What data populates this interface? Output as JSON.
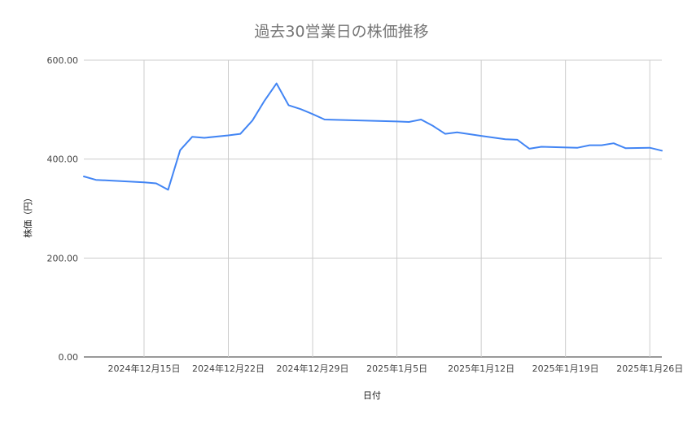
{
  "chart_data": {
    "type": "line",
    "title": "過去30営業日の株価推移",
    "xlabel": "日付",
    "ylabel": "株価（円）",
    "ylim": [
      0,
      600
    ],
    "yticks": [
      {
        "value": 0,
        "label": "0.00"
      },
      {
        "value": 200,
        "label": "200.00"
      },
      {
        "value": 400,
        "label": "400.00"
      },
      {
        "value": 600,
        "label": "600.00"
      }
    ],
    "xlim": [
      "2024-12-10",
      "2025-01-27"
    ],
    "xticks": [
      {
        "date": "2024-12-15",
        "label": "2024年12月15日"
      },
      {
        "date": "2024-12-22",
        "label": "2024年12月22日"
      },
      {
        "date": "2024-12-29",
        "label": "2024年12月29日"
      },
      {
        "date": "2025-01-05",
        "label": "2025年1月5日"
      },
      {
        "date": "2025-01-12",
        "label": "2025年1月12日"
      },
      {
        "date": "2025-01-19",
        "label": "2025年1月19日"
      },
      {
        "date": "2025-01-26",
        "label": "2025年1月26日"
      }
    ],
    "grid": true,
    "series": [
      {
        "color": "#4285f4",
        "points": [
          {
            "x": "2024-12-10",
            "y": 365
          },
          {
            "x": "2024-12-11",
            "y": 358
          },
          {
            "x": "2024-12-15",
            "y": 353
          },
          {
            "x": "2024-12-16",
            "y": 351
          },
          {
            "x": "2024-12-17",
            "y": 338
          },
          {
            "x": "2024-12-18",
            "y": 418
          },
          {
            "x": "2024-12-19",
            "y": 445
          },
          {
            "x": "2024-12-20",
            "y": 443
          },
          {
            "x": "2024-12-22",
            "y": 448
          },
          {
            "x": "2024-12-23",
            "y": 451
          },
          {
            "x": "2024-12-24",
            "y": 478
          },
          {
            "x": "2024-12-25",
            "y": 518
          },
          {
            "x": "2024-12-26",
            "y": 553
          },
          {
            "x": "2024-12-27",
            "y": 509
          },
          {
            "x": "2024-12-28",
            "y": 501
          },
          {
            "x": "2024-12-29",
            "y": 491
          },
          {
            "x": "2024-12-30",
            "y": 480
          },
          {
            "x": "2025-01-05",
            "y": 476
          },
          {
            "x": "2025-01-06",
            "y": 475
          },
          {
            "x": "2025-01-07",
            "y": 480
          },
          {
            "x": "2025-01-08",
            "y": 467
          },
          {
            "x": "2025-01-09",
            "y": 451
          },
          {
            "x": "2025-01-10",
            "y": 454
          },
          {
            "x": "2025-01-12",
            "y": 447
          },
          {
            "x": "2025-01-14",
            "y": 440
          },
          {
            "x": "2025-01-15",
            "y": 439
          },
          {
            "x": "2025-01-16",
            "y": 421
          },
          {
            "x": "2025-01-17",
            "y": 425
          },
          {
            "x": "2025-01-20",
            "y": 423
          },
          {
            "x": "2025-01-21",
            "y": 428
          },
          {
            "x": "2025-01-22",
            "y": 428
          },
          {
            "x": "2025-01-23",
            "y": 432
          },
          {
            "x": "2025-01-24",
            "y": 422
          },
          {
            "x": "2025-01-26",
            "y": 423
          },
          {
            "x": "2025-01-27",
            "y": 417
          }
        ]
      }
    ]
  }
}
